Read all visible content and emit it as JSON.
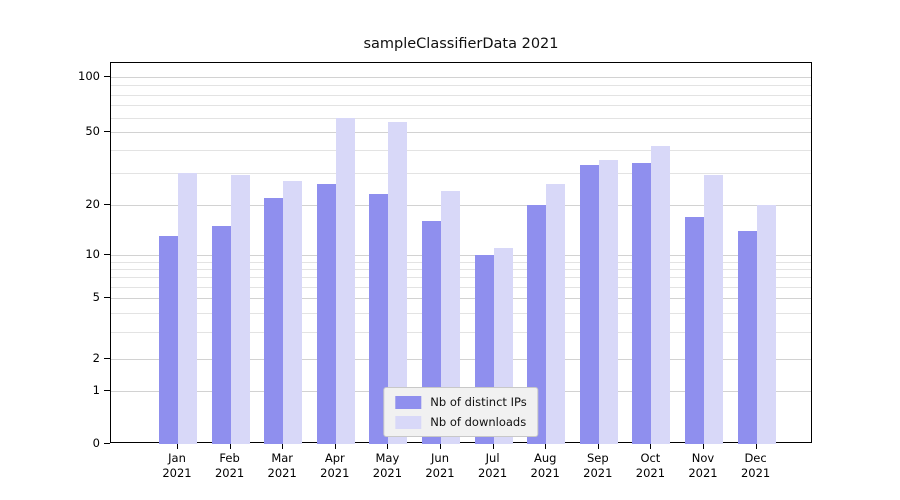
{
  "title": "sampleClassifierData 2021",
  "chart_data": {
    "type": "bar",
    "title": "sampleClassifierData 2021",
    "categories": [
      "Jan",
      "Feb",
      "Mar",
      "Apr",
      "May",
      "Jun",
      "Jul",
      "Aug",
      "Sep",
      "Oct",
      "Nov",
      "Dec"
    ],
    "year_label": "2021",
    "series": [
      {
        "name": "Nb of distinct IPs",
        "color": "#8f8fee",
        "values": [
          13,
          15,
          22,
          26,
          23,
          16,
          10,
          20,
          33,
          34,
          17,
          14
        ]
      },
      {
        "name": "Nb of downloads",
        "color": "#d8d8f8",
        "values": [
          30,
          29,
          27,
          60,
          57,
          24,
          11,
          26,
          35,
          42,
          29,
          20
        ]
      }
    ],
    "yscale": "symlog",
    "ytick_values": [
      100,
      50,
      20,
      10,
      5,
      2,
      1,
      0
    ],
    "ytick_labels": [
      "100",
      "50",
      "20",
      "10",
      "5",
      "2",
      "1",
      "0"
    ],
    "ylim": [
      0,
      120
    ],
    "grid": "horizontal log minor gridlines",
    "legend_position": "lower center inside plot"
  }
}
